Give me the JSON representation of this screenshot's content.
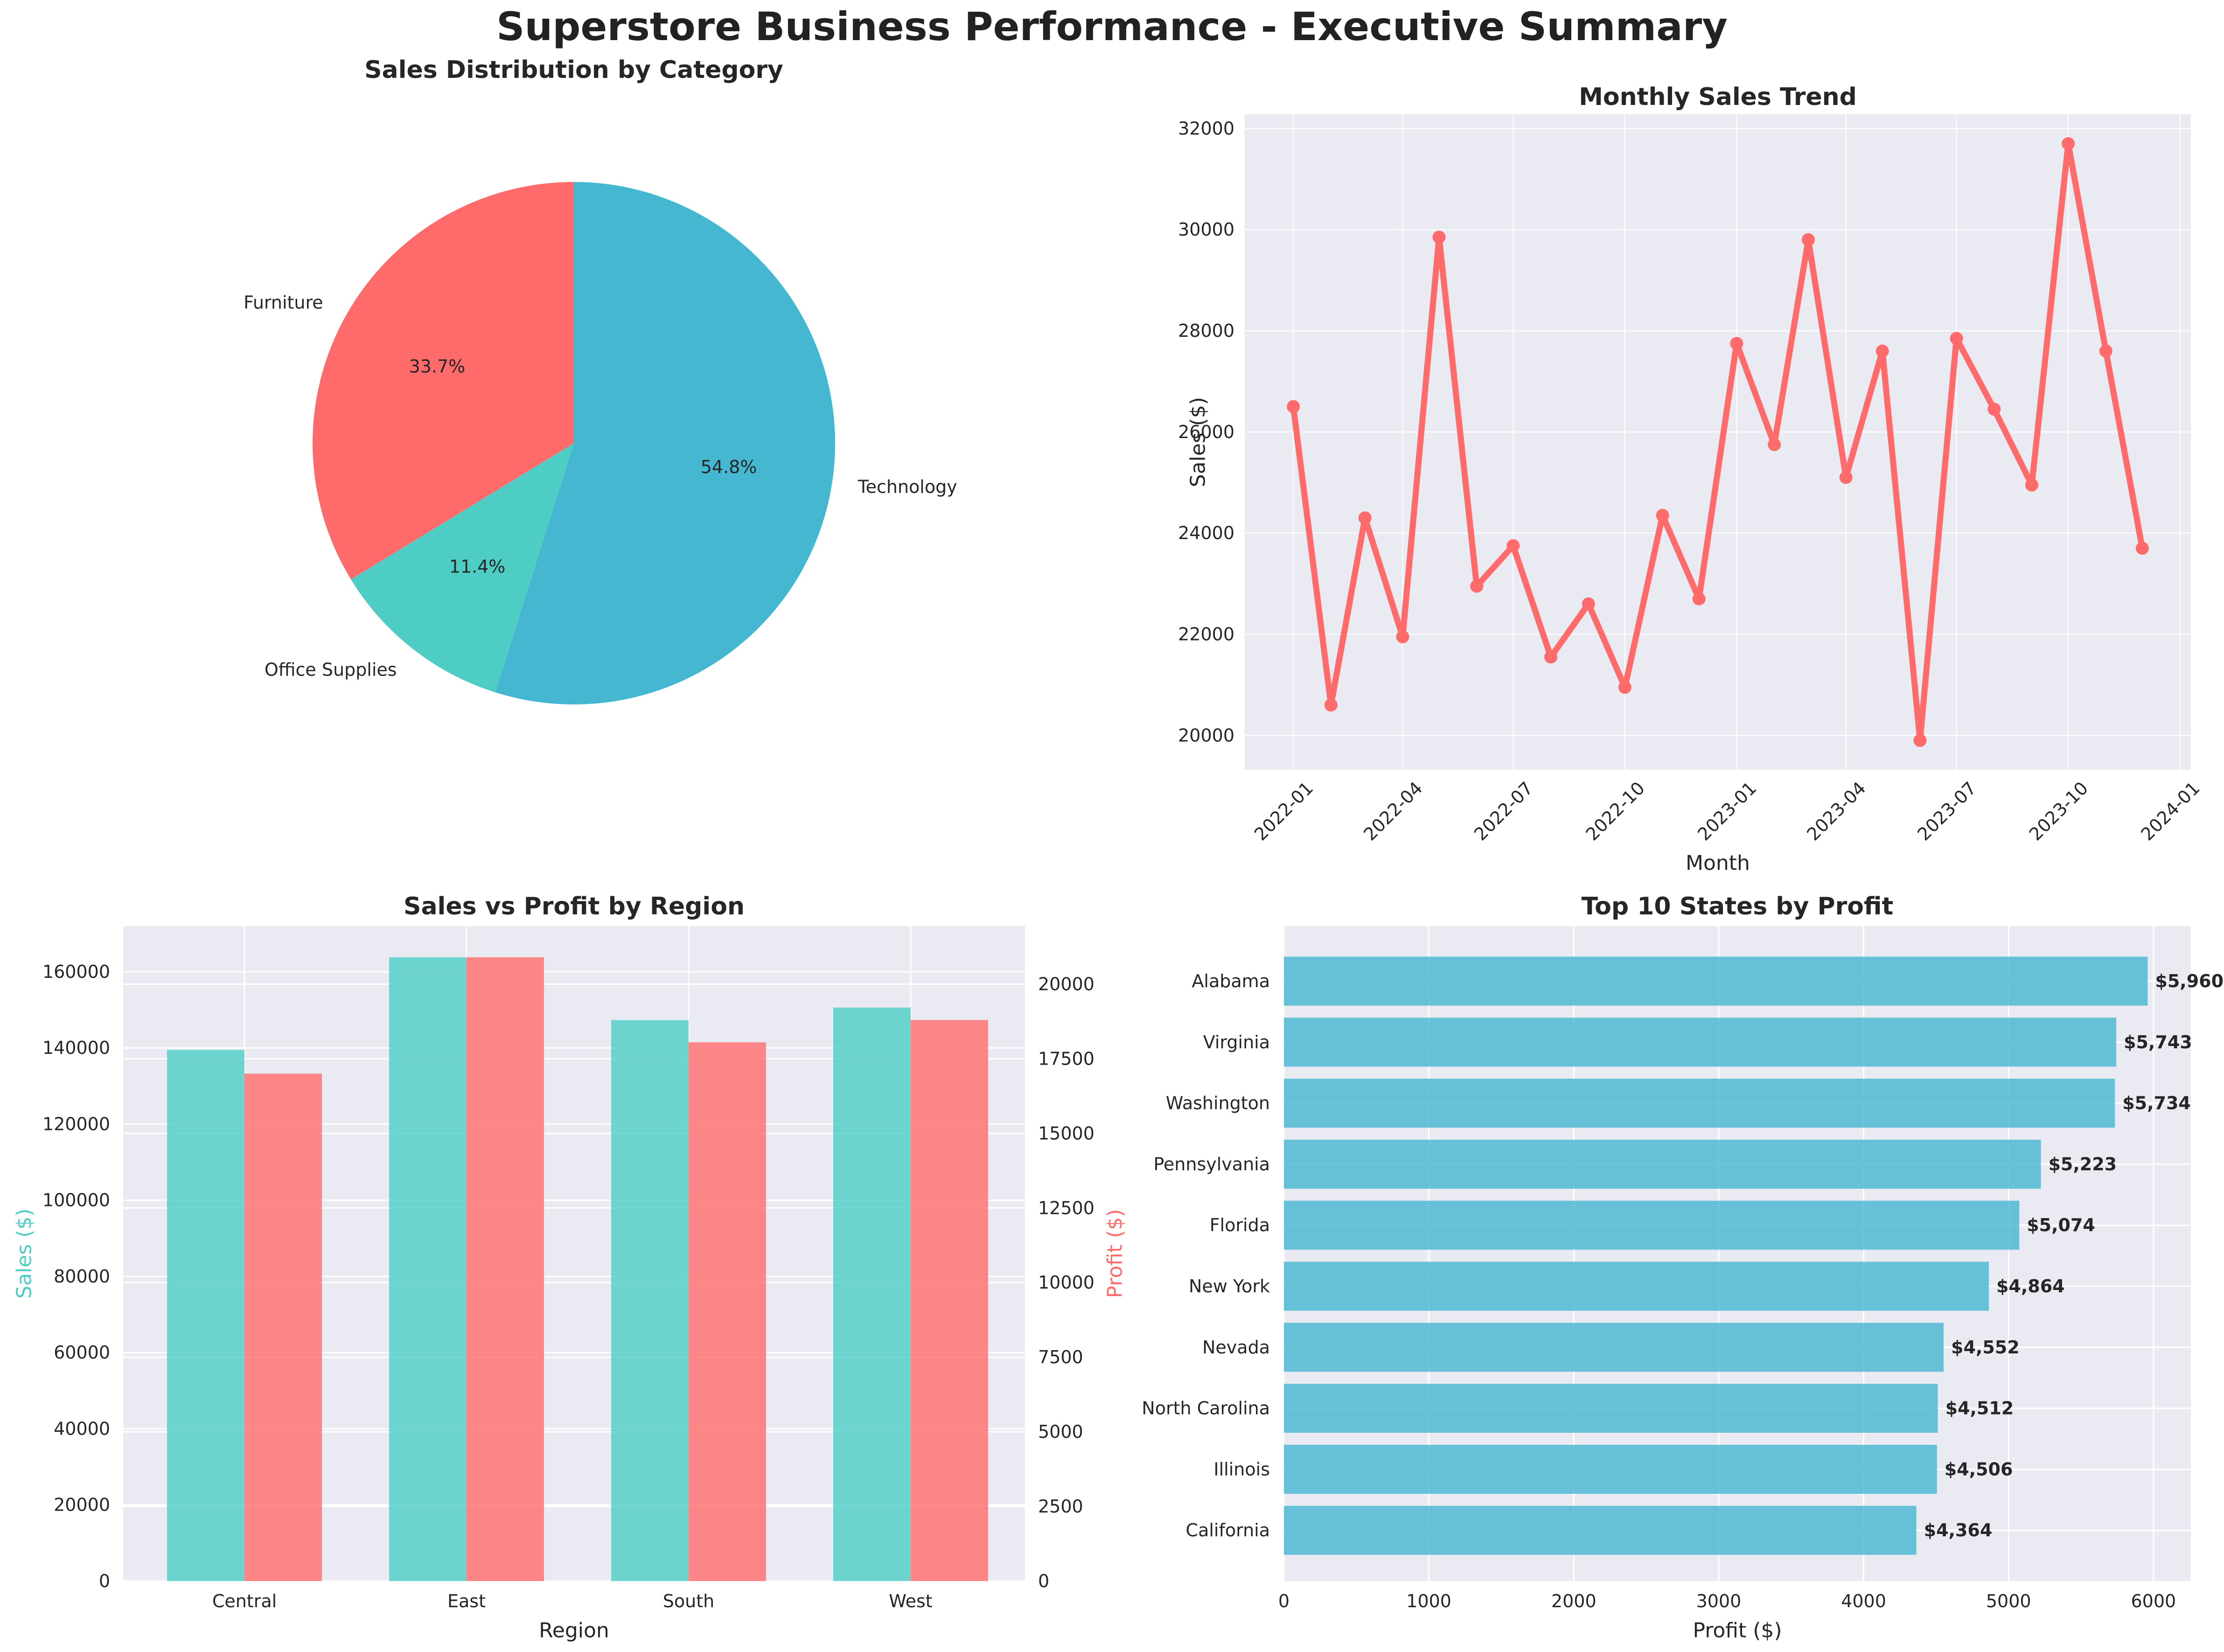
{
  "suptitle": "Superstore Business Performance - Executive Summary",
  "colors": {
    "coral": "#ff6b6b",
    "teal": "#4ecdc4",
    "blue": "#45b7d1",
    "axes_bg": "#eaeaf2",
    "grid": "#ffffff",
    "text": "#262626"
  },
  "chart_data": [
    {
      "id": "pie",
      "type": "pie",
      "title": "Sales Distribution by Category",
      "slices": [
        {
          "label": "Furniture",
          "percent": 33.7,
          "pct_label": "33.7%",
          "color": "#ff6b6b"
        },
        {
          "label": "Office Supplies",
          "percent": 11.4,
          "pct_label": "11.4%",
          "color": "#4ecdc4"
        },
        {
          "label": "Technology",
          "percent": 54.8,
          "pct_label": "54.8%",
          "color": "#45b7d1"
        }
      ],
      "start_angle_deg": 90
    },
    {
      "id": "trend",
      "type": "line",
      "title": "Monthly Sales Trend",
      "xlabel": "Month",
      "ylabel": "Sales ($)",
      "x": [
        "2022-01",
        "2022-02",
        "2022-03",
        "2022-04",
        "2022-05",
        "2022-06",
        "2022-07",
        "2022-08",
        "2022-09",
        "2022-10",
        "2022-11",
        "2022-12",
        "2023-01",
        "2023-02",
        "2023-03",
        "2023-04",
        "2023-05",
        "2023-06",
        "2023-07",
        "2023-08",
        "2023-09",
        "2023-10",
        "2023-11",
        "2023-12"
      ],
      "values": [
        26500,
        20600,
        24300,
        21950,
        29850,
        22950,
        23750,
        21550,
        22600,
        20950,
        24350,
        22700,
        27750,
        25750,
        29800,
        25100,
        27600,
        19900,
        27850,
        26450,
        24950,
        31700,
        27600,
        23700
      ],
      "xticks": [
        "2022-01",
        "2022-04",
        "2022-07",
        "2022-10",
        "2023-01",
        "2023-04",
        "2023-07",
        "2023-10",
        "2024-01"
      ],
      "yticks": [
        20000,
        22000,
        24000,
        26000,
        28000,
        30000,
        32000
      ],
      "ylim": [
        19320,
        32280
      ],
      "xlim": [
        "2021-11-22",
        "2024-01-10"
      ],
      "grid": true,
      "color": "#ff6b6b"
    },
    {
      "id": "region",
      "type": "bar",
      "title": "Sales vs Profit by Region",
      "xlabel": "Region",
      "ylabel": "Sales ($)",
      "ylabel_right": "Profit ($)",
      "categories": [
        "Central",
        "East",
        "South",
        "West"
      ],
      "series": [
        {
          "name": "Sales ($)",
          "axis": "left",
          "values": [
            139500,
            163800,
            147300,
            150600
          ],
          "color": "#4ecdc4"
        },
        {
          "name": "Profit ($)",
          "axis": "right",
          "values": [
            17000,
            20900,
            18050,
            18800
          ],
          "color": "#ff6b6b"
        }
      ],
      "yticks_left": [
        0,
        20000,
        40000,
        60000,
        80000,
        100000,
        120000,
        140000,
        160000
      ],
      "ylim_left": [
        0,
        172000
      ],
      "yticks_right": [
        0,
        2500,
        5000,
        7500,
        10000,
        12500,
        15000,
        17500,
        20000
      ],
      "ylim_right": [
        0,
        21945
      ],
      "grid": true
    },
    {
      "id": "states",
      "type": "bar",
      "orientation": "horizontal",
      "title": "Top 10 States by Profit",
      "xlabel": "Profit ($)",
      "categories": [
        "Alabama",
        "Virginia",
        "Washington",
        "Pennsylvania",
        "Florida",
        "New York",
        "Nevada",
        "North Carolina",
        "Illinois",
        "California"
      ],
      "values": [
        5960,
        5743,
        5734,
        5223,
        5074,
        4864,
        4552,
        4512,
        4506,
        4364
      ],
      "value_labels": [
        "$5,960",
        "$5,743",
        "$5,734",
        "$5,223",
        "$5,074",
        "$4,864",
        "$4,552",
        "$4,512",
        "$4,506",
        "$4,364"
      ],
      "xticks": [
        0,
        1000,
        2000,
        3000,
        4000,
        5000,
        6000
      ],
      "xlim": [
        0,
        6258
      ],
      "grid": true,
      "color": "#45b7d1"
    }
  ]
}
